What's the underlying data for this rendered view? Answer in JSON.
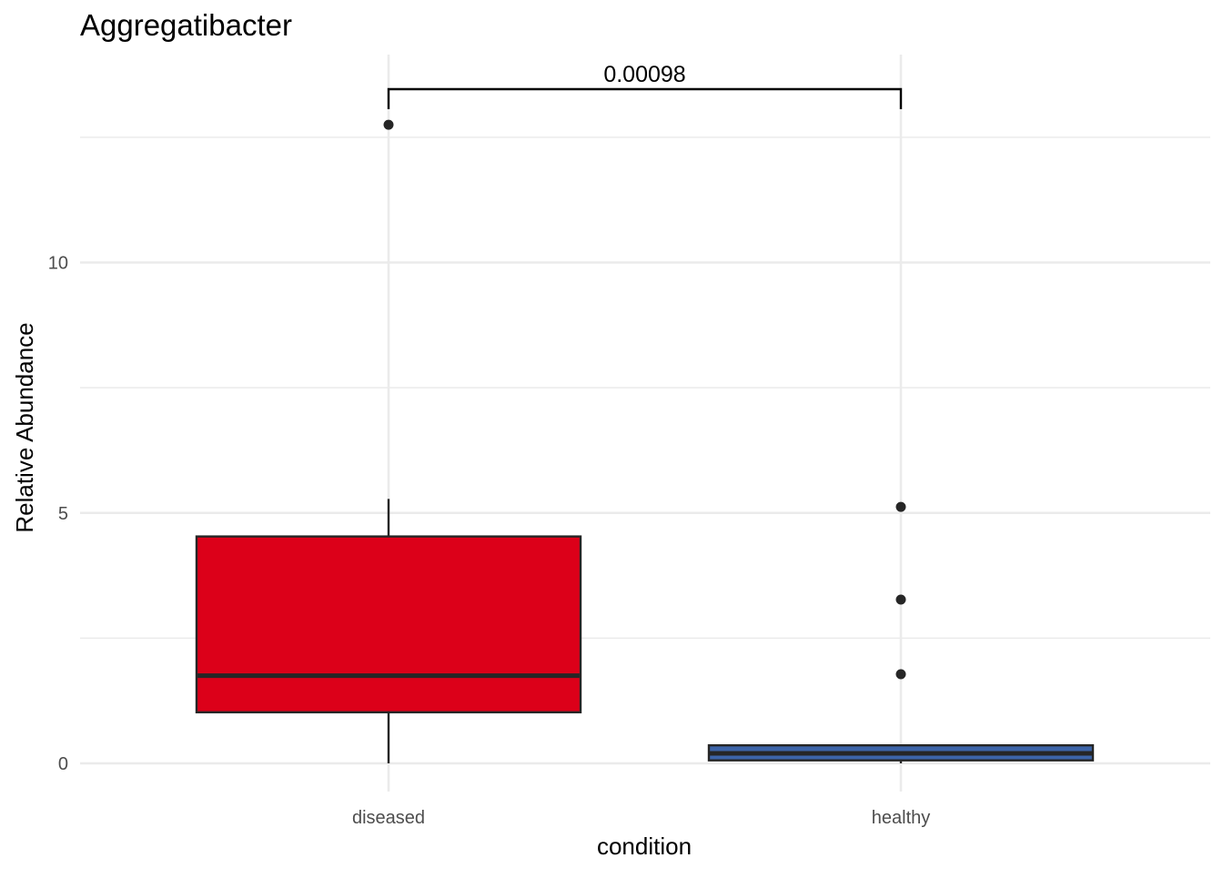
{
  "chart_data": {
    "type": "boxplot",
    "title": "Aggregatibacter",
    "xlabel": "condition",
    "ylabel": "Relative Abundance",
    "categories": [
      "diseased",
      "healthy"
    ],
    "ylim": [
      -0.55,
      14.0
    ],
    "yticks": [
      0,
      5,
      10
    ],
    "ytick_labels": [
      "0",
      "5",
      "10"
    ],
    "minor_yticks": [
      2.5,
      7.5,
      12.5
    ],
    "grid": true,
    "boxes": [
      {
        "category": "diseased",
        "fill": "#DC0019",
        "q1": 1.02,
        "median": 1.75,
        "q3": 4.53,
        "whisker_low": 0.0,
        "whisker_high": 5.28,
        "outliers": [
          12.75
        ]
      },
      {
        "category": "healthy",
        "fill": "#3C64A8",
        "q1": 0.06,
        "median": 0.2,
        "q3": 0.36,
        "whisker_low": 0.0,
        "whisker_high": 0.36,
        "outliers": [
          5.12,
          3.27,
          1.78
        ]
      }
    ],
    "comparison": {
      "groups": [
        "diseased",
        "healthy"
      ],
      "label": "0.00098",
      "y": 13.1
    },
    "colors": {
      "grid": "#EBEBEB",
      "box_outline": "#262626",
      "point": "#262626",
      "bracket": "#000000"
    }
  }
}
